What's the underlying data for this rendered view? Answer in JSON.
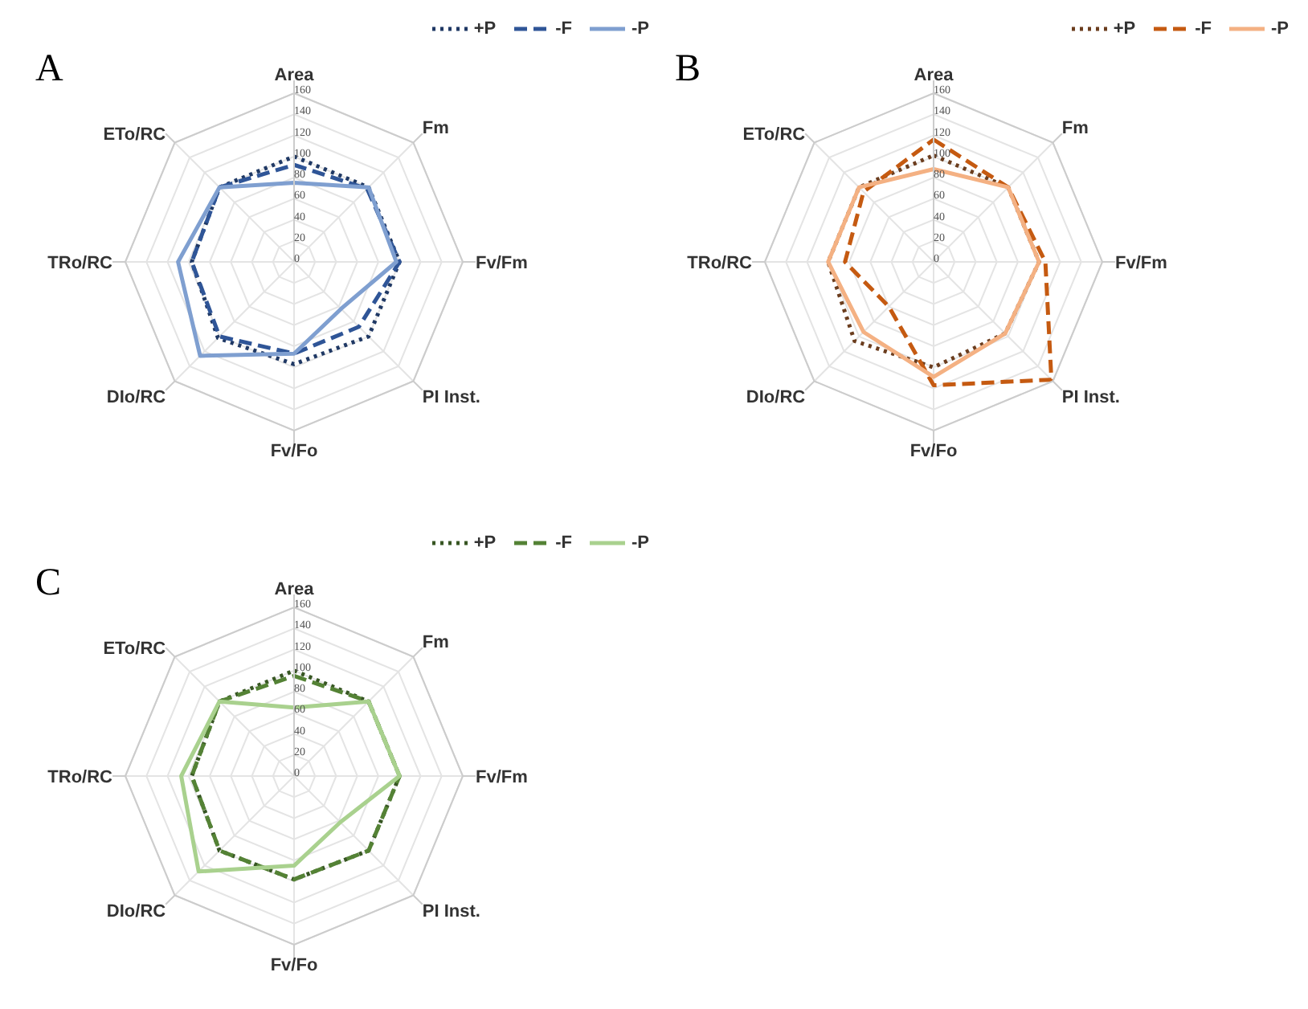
{
  "chart_data": [
    {
      "type": "radar",
      "title": "A",
      "categories": [
        "Area",
        "Fm",
        "Fv/Fm",
        "PI Inst.",
        "Fv/Fo",
        "DIo/RC",
        "TRo/RC",
        "ETo/RC"
      ],
      "ylim": [
        0,
        160
      ],
      "yticks": [
        0,
        20,
        40,
        60,
        80,
        100,
        120,
        140,
        160
      ],
      "grid": true,
      "legend": "top right",
      "marker": "none",
      "series": [
        {
          "name": "+P",
          "color": "#1f3864",
          "line_style": "dotted",
          "values": [
            100,
            100,
            100,
            100,
            97,
            102,
            97,
            100
          ]
        },
        {
          "name": "-F",
          "color": "#2f5597",
          "line_style": "dashed",
          "values": [
            92,
            98,
            100,
            87,
            87,
            100,
            97,
            100
          ]
        },
        {
          "name": "-P",
          "color": "#7f9fd0",
          "line_style": "solid",
          "values": [
            75,
            100,
            97,
            63,
            87,
            126,
            110,
            100
          ]
        }
      ]
    },
    {
      "type": "radar",
      "title": "B",
      "categories": [
        "Area",
        "Fm",
        "Fv/Fm",
        "PI Inst.",
        "Fv/Fo",
        "DIo/RC",
        "TRo/RC",
        "ETo/RC"
      ],
      "ylim": [
        0,
        160
      ],
      "yticks": [
        0,
        20,
        40,
        60,
        80,
        100,
        120,
        140,
        160
      ],
      "grid": true,
      "legend": "top right",
      "marker": "none",
      "series": [
        {
          "name": "+P",
          "color": "#6b3d1e",
          "line_style": "dotted",
          "values": [
            101,
            100,
            100,
            96,
            100,
            106,
            100,
            100
          ]
        },
        {
          "name": "-F",
          "color": "#c55a11",
          "line_style": "dashed",
          "values": [
            116,
            100,
            106,
            158,
            117,
            60,
            84,
            94
          ]
        },
        {
          "name": "-P",
          "color": "#f4b183",
          "line_style": "solid",
          "values": [
            88,
            100,
            100,
            96,
            109,
            94,
            100,
            100
          ]
        }
      ]
    },
    {
      "type": "radar",
      "title": "C",
      "categories": [
        "Area",
        "Fm",
        "Fv/Fm",
        "PI Inst.",
        "Fv/Fo",
        "DIo/RC",
        "TRo/RC",
        "ETo/RC"
      ],
      "ylim": [
        0,
        160
      ],
      "yticks": [
        0,
        20,
        40,
        60,
        80,
        100,
        120,
        140,
        160
      ],
      "grid": true,
      "legend": "top right",
      "marker": "none",
      "series": [
        {
          "name": "+P",
          "color": "#375623",
          "line_style": "dotted",
          "values": [
            100,
            100,
            100,
            100,
            98,
            100,
            97,
            100
          ]
        },
        {
          "name": "-F",
          "color": "#548235",
          "line_style": "dashed",
          "values": [
            95,
            100,
            100,
            100,
            98,
            100,
            97,
            100
          ]
        },
        {
          "name": "-P",
          "color": "#a9d18e",
          "line_style": "solid",
          "values": [
            65,
            100,
            100,
            62,
            85,
            128,
            107,
            100
          ]
        }
      ]
    }
  ]
}
